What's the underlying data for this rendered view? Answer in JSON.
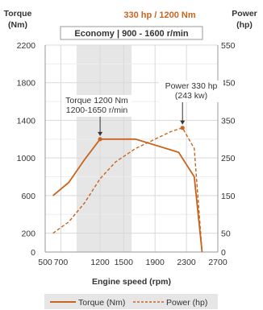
{
  "chart_data": {
    "type": "line",
    "title": "330 hp / 1200 Nm",
    "left_axis_title": [
      "Torque",
      "(Nm)"
    ],
    "right_axis_title": [
      "Power",
      "(hp)"
    ],
    "xlabel": "Engine speed (rpm)",
    "xlim": [
      500,
      2700
    ],
    "x_ticks": [
      500,
      700,
      1200,
      1500,
      1900,
      2300,
      2700
    ],
    "x_tick_labels": [
      "500",
      "700",
      "1200",
      "1500",
      "1900",
      "2300",
      "2700"
    ],
    "y_left_lim": [
      0,
      2200
    ],
    "y_left_ticks": [
      0,
      200,
      600,
      1000,
      1400,
      1800,
      2200
    ],
    "y_left_tick_labels": [
      "0",
      "200",
      "600",
      "1000",
      "1400",
      "1800",
      "2200"
    ],
    "y_right_lim": [
      0,
      550
    ],
    "y_right_ticks": [
      0,
      50,
      150,
      250,
      350,
      450,
      550
    ],
    "y_right_tick_labels": [
      "0",
      "50",
      "150",
      "250",
      "350",
      "450",
      "550"
    ],
    "economy_band": {
      "label": "Economy | 900 - 1600 r/min",
      "from": 900,
      "to": 1600
    },
    "series": [
      {
        "name": "Torque (Nm)",
        "axis": "left",
        "style": "solid",
        "x": [
          600,
          800,
          1000,
          1200,
          1650,
          2200,
          2400,
          2500
        ],
        "y": [
          600,
          740,
          980,
          1200,
          1200,
          1060,
          800,
          0
        ]
      },
      {
        "name": "Power (hp)",
        "axis": "right",
        "style": "dashed",
        "x": [
          600,
          800,
          1000,
          1200,
          1400,
          1650,
          1900,
          2100,
          2250,
          2400,
          2500
        ],
        "y": [
          50,
          80,
          130,
          195,
          240,
          275,
          300,
          320,
          330,
          275,
          0
        ]
      }
    ],
    "annotations": [
      {
        "lines": [
          "Torque 1200 Nm",
          "1200-1650 r/min"
        ],
        "point": {
          "series": 0,
          "x": 1200,
          "y": 1200
        }
      },
      {
        "lines": [
          "Power 330 hp",
          "(243 kw)"
        ],
        "point": {
          "series": 1,
          "x": 2250,
          "y": 330
        }
      }
    ],
    "grid": true,
    "legend_position": "bottom",
    "colors": {
      "series": "#c8641e",
      "band": "#e6e6e6",
      "grid": "#d9d9d9",
      "title": "#c8641e"
    }
  }
}
